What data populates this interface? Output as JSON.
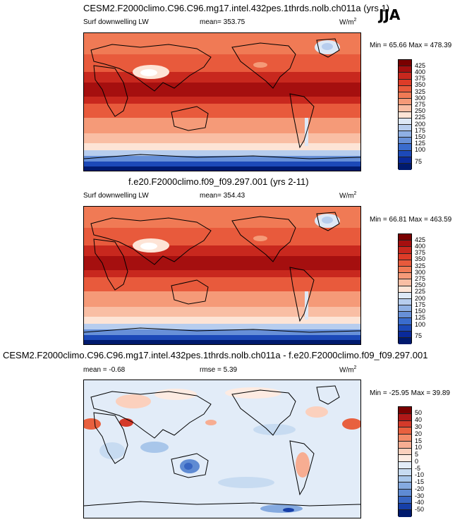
{
  "season": "JJA",
  "panels": [
    {
      "title": "CESM2.F2000climo.C96.C96.mg17.intel.432pes.1thrds.nolb.ch011a (yrs 1)",
      "left_label": "Surf downwelling LW",
      "center_label": "mean=  353.75",
      "units": "W/m",
      "units_sup": "2",
      "minmax": "Min =  65.66 Max =  478.39",
      "colorbar_ticks": [
        "425",
        "400",
        "375",
        "350",
        "325",
        "300",
        "275",
        "250",
        "225",
        "200",
        "175",
        "150",
        "125",
        "100",
        "75"
      ]
    },
    {
      "title": "f.e20.F2000climo.f09_f09.297.001 (yrs 2-11)",
      "left_label": "Surf downwelling LW",
      "center_label": "mean=  354.43",
      "units": "W/m",
      "units_sup": "2",
      "minmax": "Min =  66.81 Max =  463.59",
      "colorbar_ticks": [
        "425",
        "400",
        "375",
        "350",
        "325",
        "300",
        "275",
        "250",
        "225",
        "200",
        "175",
        "150",
        "125",
        "100",
        "75"
      ]
    },
    {
      "title": "CESM2.F2000climo.C96.C96.mg17.intel.432pes.1thrds.nolb.ch011a - f.e20.F2000climo.f09_f09.297.001",
      "left_label": "mean =  -0.68",
      "center_label": "rmse =   5.39",
      "units": "W/m",
      "units_sup": "2",
      "minmax": "Min = -25.95 Max =  39.89",
      "colorbar_ticks": [
        "50",
        "40",
        "30",
        "20",
        "15",
        "10",
        "5",
        "0",
        "-5",
        "-10",
        "-15",
        "-20",
        "-30",
        "-40",
        "-50"
      ]
    }
  ],
  "colors": {
    "abs_palette": [
      "#7a0000",
      "#a50f0f",
      "#c8281e",
      "#dd3c28",
      "#e85a3c",
      "#f07a55",
      "#f59a78",
      "#f9bea4",
      "#fde4d6",
      "#dde8f6",
      "#b7cdee",
      "#8fb0e4",
      "#6790d8",
      "#3a6ccd",
      "#1c49b8",
      "#0a2a9a",
      "#001a6e"
    ],
    "diff_palette": [
      "#7a0000",
      "#b01818",
      "#d43a2a",
      "#e8603f",
      "#f28a68",
      "#f7ad92",
      "#fbd0bd",
      "#fdebe2",
      "#e2ecf8",
      "#c7dbf1",
      "#a8c6ea",
      "#85aae0",
      "#5f8bd3",
      "#3765c2",
      "#163fa8",
      "#001a6e"
    ],
    "sea_ice_white": "#f4f4fa"
  }
}
